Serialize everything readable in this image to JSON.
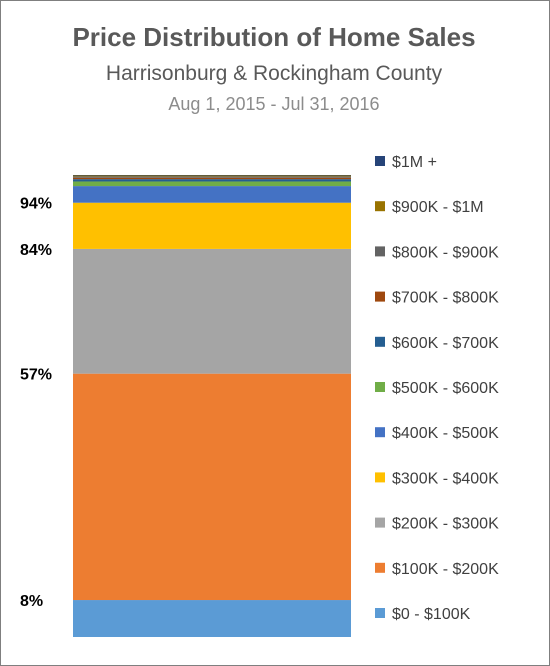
{
  "chart_data": {
    "type": "bar",
    "stacked": true,
    "orientation": "vertical",
    "title": "Price Distribution of Home Sales",
    "subtitle": "Harrisonburg & Rockingham County",
    "date_range": "Aug 1, 2015 - Jul 31, 2016",
    "series": [
      {
        "name": "$0 - $100K",
        "value": 8,
        "color": "#5b9bd5"
      },
      {
        "name": "$100K - $200K",
        "value": 49,
        "color": "#ed7d31"
      },
      {
        "name": "$200K - $300K",
        "value": 27,
        "color": "#a5a5a5"
      },
      {
        "name": "$300K - $400K",
        "value": 10,
        "color": "#ffc000"
      },
      {
        "name": "$400K - $500K",
        "value": 3.6,
        "color": "#4472c4"
      },
      {
        "name": "$500K - $600K",
        "value": 1.0,
        "color": "#70ad47"
      },
      {
        "name": "$600K - $700K",
        "value": 0.5,
        "color": "#255e91"
      },
      {
        "name": "$700K - $800K",
        "value": 0.3,
        "color": "#9e480e"
      },
      {
        "name": "$800K - $900K",
        "value": 0.3,
        "color": "#636363"
      },
      {
        "name": "$900K - $1M",
        "value": 0.2,
        "color": "#997300"
      },
      {
        "name": "$1M +",
        "value": 0.1,
        "color": "#264478"
      }
    ],
    "cumulative_labels": [
      {
        "text": "8%",
        "value": 8
      },
      {
        "text": "57%",
        "value": 57
      },
      {
        "text": "84%",
        "value": 84
      },
      {
        "text": "94%",
        "value": 94
      }
    ],
    "ylim": [
      0,
      100
    ],
    "legend_position": "right"
  }
}
